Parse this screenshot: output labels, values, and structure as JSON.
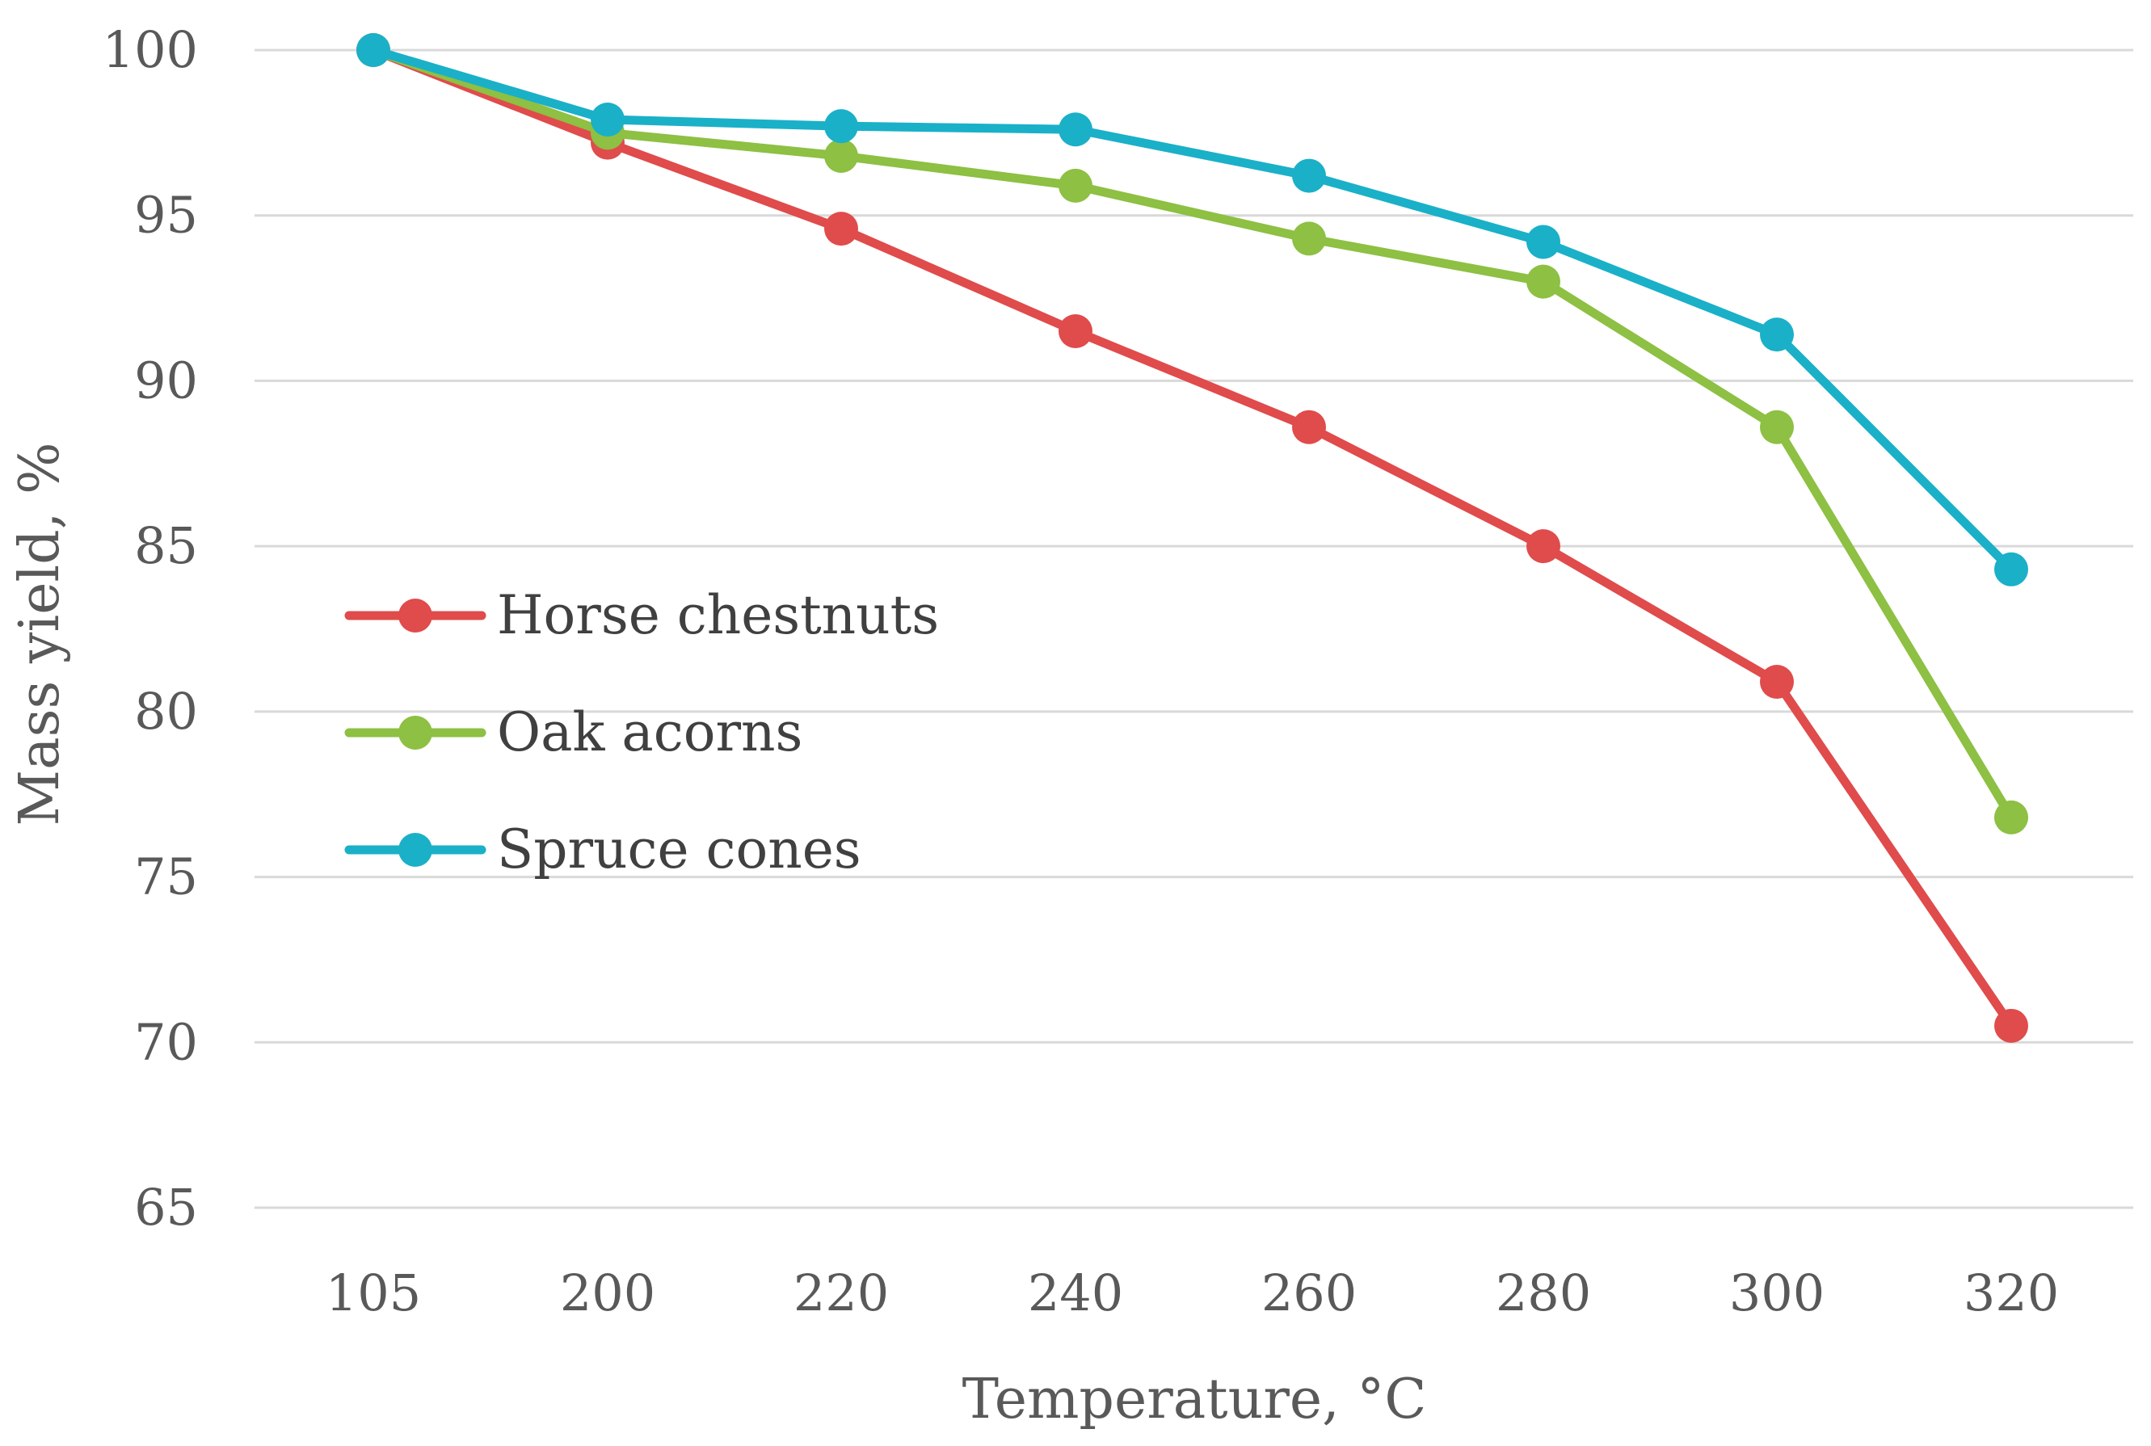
{
  "chart_data": {
    "type": "line",
    "title": "",
    "xlabel": "Temperature, °C",
    "ylabel": "Mass yield, %",
    "categories": [
      "105",
      "200",
      "220",
      "240",
      "260",
      "280",
      "300",
      "320"
    ],
    "ylim": [
      65,
      100
    ],
    "yticks": [
      65,
      70,
      75,
      80,
      85,
      90,
      95,
      100
    ],
    "grid": true,
    "legend_position": "left-middle",
    "series": [
      {
        "name": "Horse chestnuts",
        "color": "#e04b4b",
        "values": [
          100,
          97.2,
          94.6,
          91.5,
          88.6,
          85.0,
          80.9,
          70.5
        ]
      },
      {
        "name": "Oak acorns",
        "color": "#8dc043",
        "values": [
          100,
          97.5,
          96.8,
          95.9,
          94.3,
          93.0,
          88.6,
          76.8
        ]
      },
      {
        "name": "Spruce cones",
        "color": "#1ab0c8",
        "values": [
          100,
          97.9,
          97.7,
          97.6,
          96.2,
          94.2,
          91.4,
          84.3
        ]
      }
    ]
  }
}
